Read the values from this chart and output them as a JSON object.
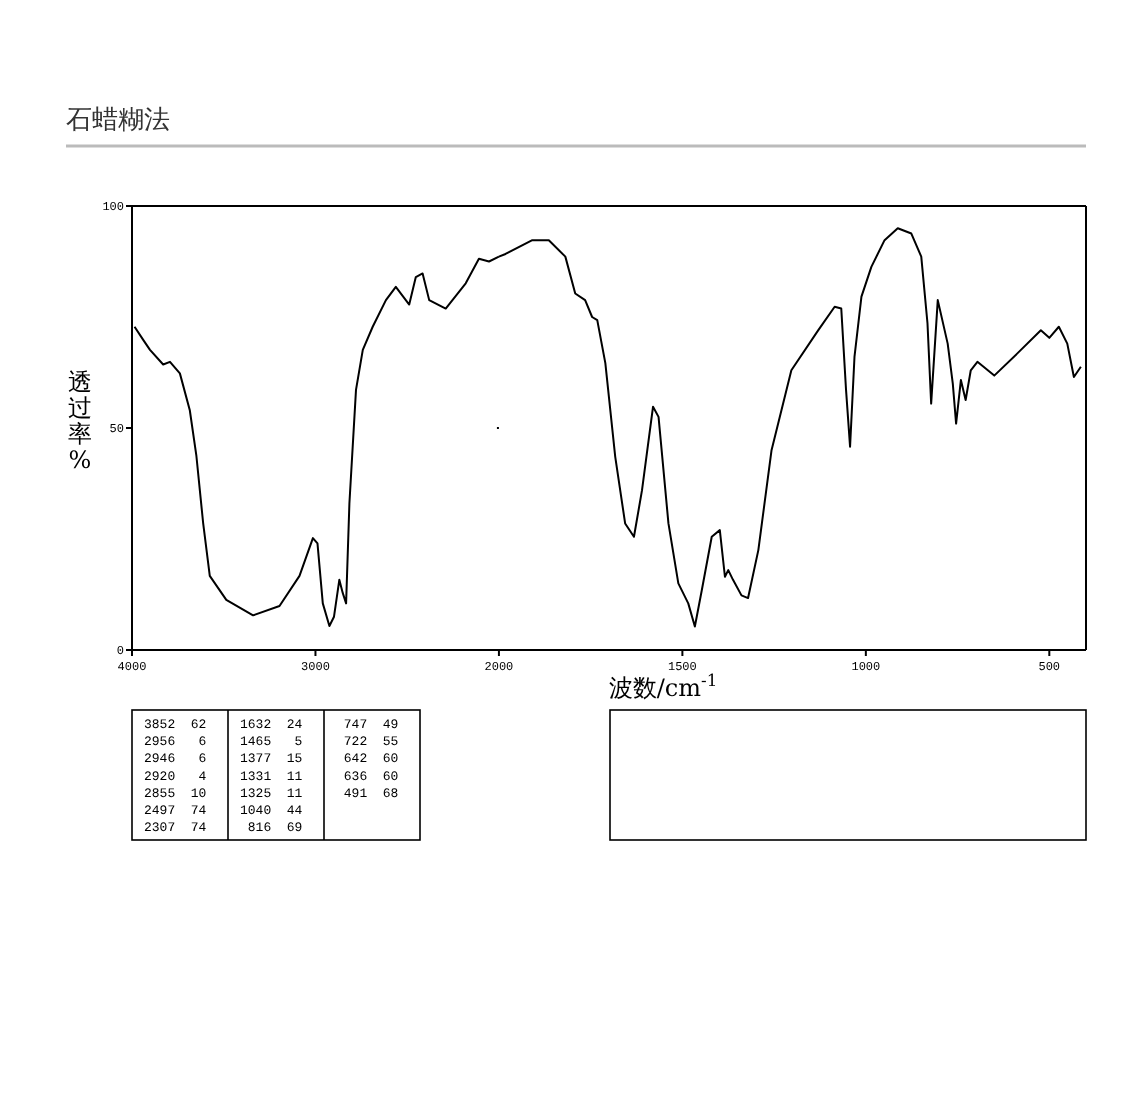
{
  "chart_data": [
    {
      "type": "line",
      "title": "石蜡糊法",
      "ylabel": "透过率%",
      "xlim": [
        4000,
        2000
      ],
      "ylim": [
        0,
        100
      ],
      "xticks": [
        4000,
        3000,
        2000
      ],
      "yticks": [
        0,
        50,
        100
      ],
      "x": [
        3986,
        3938,
        3902,
        3830,
        3793,
        3739,
        3685,
        3649,
        3612,
        3576,
        3486,
        3340,
        3196,
        3087,
        3014,
        2989,
        2960,
        2924,
        2899,
        2870,
        2851,
        2833,
        2815,
        2779,
        2742,
        2688,
        2616,
        2562,
        2489,
        2453,
        2416,
        2380,
        2290,
        2181,
        2109,
        2054,
        2000
      ],
      "values": [
        72.8,
        69.8,
        67.6,
        64.3,
        64.9,
        62.3,
        54,
        43.7,
        28.5,
        16.7,
        11.3,
        7.8,
        9.9,
        16.7,
        25.2,
        24,
        10.5,
        5.4,
        7.5,
        15.8,
        12.8,
        10.5,
        33,
        58.6,
        67.6,
        72.8,
        78.8,
        81.8,
        77.8,
        84,
        84.8,
        78.8,
        76.9,
        82.6,
        88.1,
        87.5,
        88.6
      ],
      "color": "#000000",
      "annotations": [
        "3852  62",
        "2956   6",
        "2946   6",
        "2920   4",
        "2855  10",
        "2497  74",
        "2307  74",
        "1632  24",
        "1465   5",
        "1377  15",
        "1331  11",
        "1325  11",
        "1040  44",
        " 816  69",
        " 747  49",
        " 722  55",
        " 642  60",
        " 636  60",
        " 491  68"
      ]
    },
    {
      "type": "line",
      "xlabel": "波数/cm$^{-1}$",
      "xlim": [
        2000,
        400
      ],
      "ylim": [
        0,
        100
      ],
      "xticks": [
        1500,
        1000,
        500
      ],
      "yticks": [
        0,
        50,
        100
      ],
      "tick_labels": "x",
      "x": [
        2000,
        1982,
        1909,
        1864,
        1819,
        1792,
        1765,
        1746,
        1732,
        1710,
        1683,
        1656,
        1632,
        1610,
        1580,
        1565,
        1538,
        1511,
        1484,
        1466,
        1447,
        1420,
        1398,
        1384,
        1375,
        1362,
        1339,
        1321,
        1293,
        1257,
        1203,
        1130,
        1085,
        1067,
        1054,
        1043,
        1031,
        1012,
        985,
        949,
        913,
        876,
        849,
        832,
        822,
        804,
        777,
        763,
        754,
        741,
        728,
        714,
        696,
        650,
        587,
        523,
        500,
        474,
        451,
        433,
        414
      ],
      "values": [
        88.6,
        89.2,
        92.3,
        92.3,
        88.6,
        80.3,
        78.8,
        75,
        74.3,
        64.6,
        43.5,
        28.5,
        25.5,
        36,
        54.8,
        52.5,
        28.5,
        15,
        10.5,
        5.3,
        13.5,
        25.5,
        27,
        16.5,
        18,
        15.8,
        12.3,
        11.7,
        22.5,
        45,
        63,
        72,
        77.3,
        76.9,
        58.6,
        45.8,
        66,
        79.6,
        86.3,
        92.3,
        95,
        93.8,
        88.6,
        73.6,
        55.5,
        78.8,
        69,
        60,
        51,
        60.8,
        56.3,
        63,
        64.9,
        61.8,
        66.8,
        72,
        70.3,
        72.8,
        69,
        61.5,
        63.8
      ],
      "color": "#000000"
    }
  ]
}
